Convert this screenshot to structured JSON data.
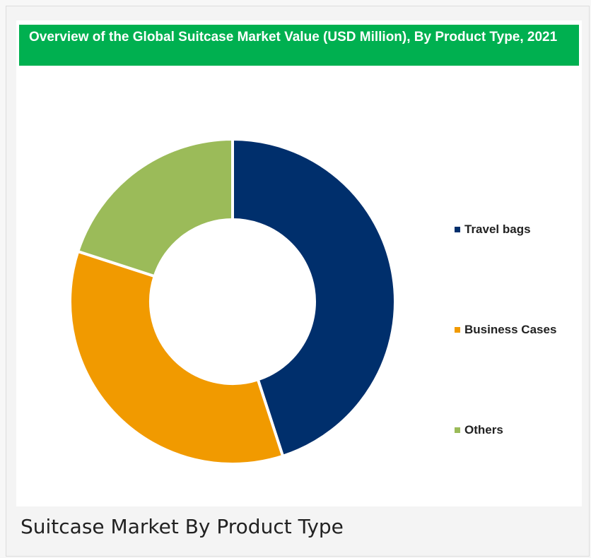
{
  "caption": "Suitcase Market By Product Type",
  "chart_data": {
    "type": "pie",
    "variant": "donut",
    "title": "Overview of the Global Suitcase Market Value (USD Million), By Product Type, 2021",
    "categories": [
      "Travel bags",
      "Business Cases",
      "Others"
    ],
    "values": [
      45,
      35,
      20
    ],
    "value_unit": "percent share (estimated)",
    "colors": [
      "#002f6c",
      "#f19a00",
      "#9bbb59"
    ],
    "legend_position": "right",
    "start_angle": "top, clockwise"
  }
}
